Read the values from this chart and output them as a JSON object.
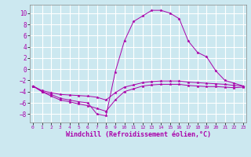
{
  "background_color": "#cce8f0",
  "grid_color": "#ffffff",
  "line_color": "#aa00aa",
  "marker_color": "#aa00aa",
  "xlabel": "Windchill (Refroidissement éolien,°C)",
  "xlabel_fontsize": 6,
  "yticks": [
    -8,
    -6,
    -4,
    -2,
    0,
    2,
    4,
    6,
    8,
    10
  ],
  "xticks": [
    0,
    1,
    2,
    3,
    4,
    5,
    6,
    7,
    8,
    9,
    10,
    11,
    12,
    13,
    14,
    15,
    16,
    17,
    18,
    19,
    20,
    21,
    22,
    23
  ],
  "xlim": [
    -0.3,
    23.3
  ],
  "ylim": [
    -9.5,
    11.5
  ],
  "series": [
    {
      "x": [
        0,
        1,
        2,
        3,
        4,
        5,
        6,
        7,
        8,
        9,
        10,
        11,
        12,
        13,
        14,
        15,
        16,
        17,
        18,
        19,
        20,
        21,
        22,
        23
      ],
      "y": [
        -3.0,
        -4.0,
        -4.5,
        -5.2,
        -5.5,
        -5.8,
        -6.0,
        -8.0,
        -8.3,
        -0.5,
        5.0,
        8.5,
        9.5,
        10.5,
        10.5,
        10.0,
        9.0,
        5.0,
        3.0,
        2.2,
        -0.3,
        -2.0,
        -2.5,
        -3.0
      ]
    },
    {
      "x": [
        0,
        1,
        2,
        3,
        4,
        5,
        6,
        7,
        8,
        9,
        10,
        11,
        12,
        13,
        14,
        15,
        16,
        17,
        18,
        19,
        20,
        21,
        22,
        23
      ],
      "y": [
        -3.0,
        -3.8,
        -4.2,
        -4.5,
        -4.6,
        -4.7,
        -4.8,
        -5.0,
        -5.5,
        -4.2,
        -3.2,
        -2.8,
        -2.4,
        -2.2,
        -2.1,
        -2.1,
        -2.1,
        -2.3,
        -2.4,
        -2.5,
        -2.6,
        -2.7,
        -2.9,
        -3.0
      ]
    },
    {
      "x": [
        0,
        1,
        2,
        3,
        4,
        5,
        6,
        7,
        8,
        9,
        10,
        11,
        12,
        13,
        14,
        15,
        16,
        17,
        18,
        19,
        20,
        21,
        22,
        23
      ],
      "y": [
        -3.0,
        -4.0,
        -4.8,
        -5.5,
        -5.8,
        -6.2,
        -6.5,
        -7.0,
        -7.5,
        -5.5,
        -4.0,
        -3.5,
        -3.0,
        -2.8,
        -2.7,
        -2.7,
        -2.7,
        -2.9,
        -3.0,
        -3.1,
        -3.1,
        -3.2,
        -3.3,
        -3.2
      ]
    }
  ]
}
